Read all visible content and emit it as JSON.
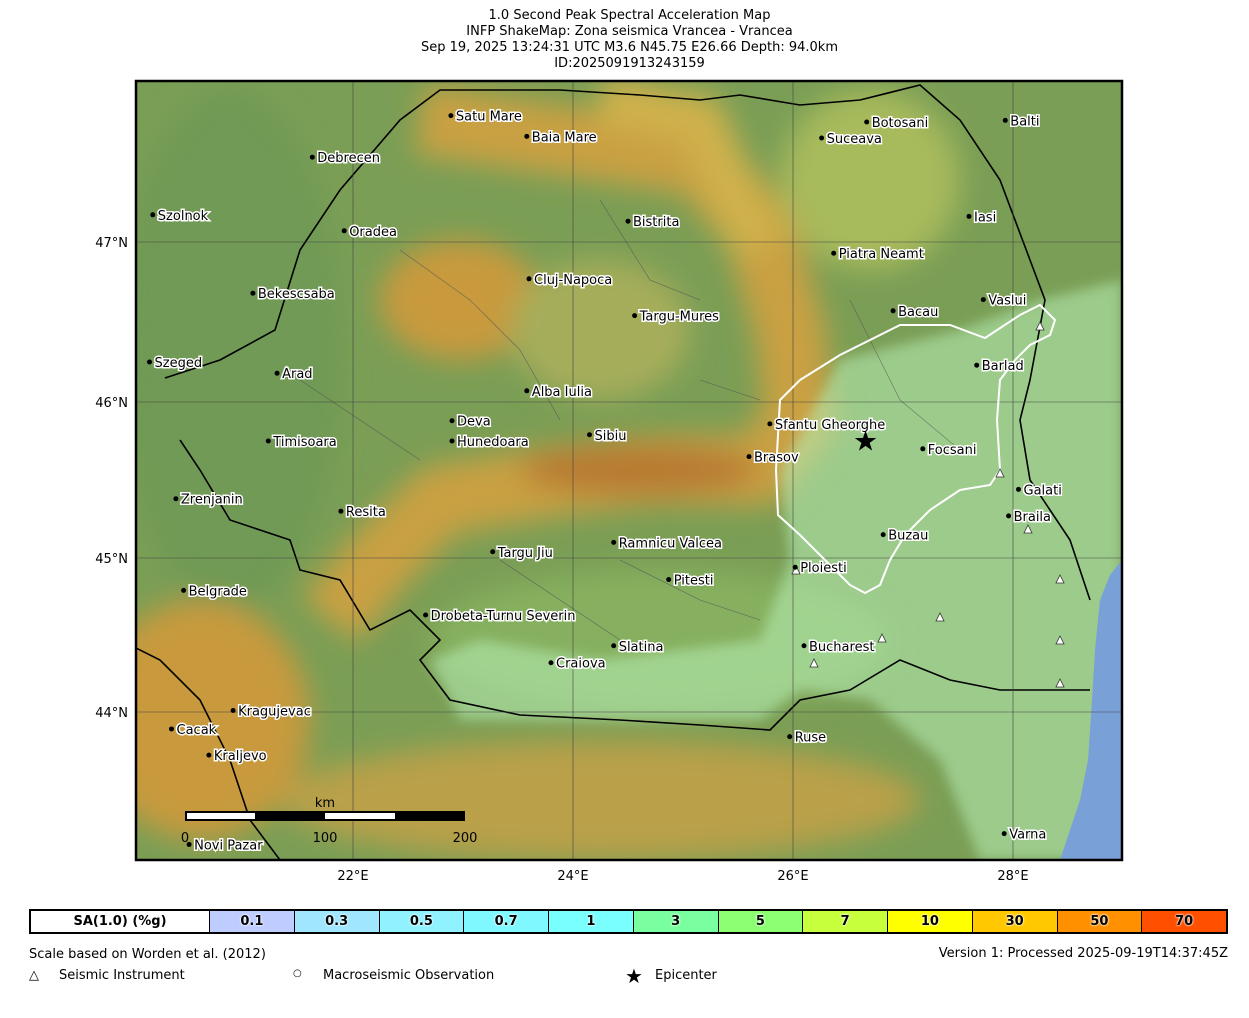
{
  "title": {
    "line1": "1.0 Second Peak Spectral Acceleration Map",
    "line2": "INFP ShakeMap: Zona seismica Vrancea - Vrancea",
    "line3": "Sep 19, 2025 13:24:31 UTC M3.6 N45.75 E26.66 Depth: 94.0km",
    "line4": "ID:2025091913243159"
  },
  "axes": {
    "lat_ticks": [
      "47°N",
      "46°N",
      "45°N",
      "44°N"
    ],
    "lon_ticks": [
      "22°E",
      "24°E",
      "26°E",
      "28°E"
    ]
  },
  "epicenter": {
    "lon": 26.66,
    "lat": 45.75
  },
  "cities": [
    {
      "name": "Satu Mare",
      "lon": 22.89,
      "lat": 47.79
    },
    {
      "name": "Baia Mare",
      "lon": 23.58,
      "lat": 47.66
    },
    {
      "name": "Debrecen",
      "lon": 21.63,
      "lat": 47.53
    },
    {
      "name": "Botosani",
      "lon": 26.67,
      "lat": 47.75
    },
    {
      "name": "Suceava",
      "lon": 26.26,
      "lat": 47.65
    },
    {
      "name": "Balti",
      "lon": 27.93,
      "lat": 47.76
    },
    {
      "name": "Szolnok",
      "lon": 20.18,
      "lat": 47.17
    },
    {
      "name": "Bistrita",
      "lon": 24.5,
      "lat": 47.13
    },
    {
      "name": "Iasi",
      "lon": 27.6,
      "lat": 47.16
    },
    {
      "name": "Oradea",
      "lon": 21.92,
      "lat": 47.07
    },
    {
      "name": "Piatra Neamt",
      "lon": 26.37,
      "lat": 46.93
    },
    {
      "name": "Cluj-Napoca",
      "lon": 23.6,
      "lat": 46.77
    },
    {
      "name": "Bekescsaba",
      "lon": 21.09,
      "lat": 46.68
    },
    {
      "name": "Targu-Mures",
      "lon": 24.56,
      "lat": 46.54
    },
    {
      "name": "Bacau",
      "lon": 26.91,
      "lat": 46.57
    },
    {
      "name": "Vaslui",
      "lon": 27.73,
      "lat": 46.64
    },
    {
      "name": "Szeged",
      "lon": 20.15,
      "lat": 46.25
    },
    {
      "name": "Arad",
      "lon": 21.31,
      "lat": 46.18
    },
    {
      "name": "Barlad",
      "lon": 27.67,
      "lat": 46.23
    },
    {
      "name": "Alba Iulia",
      "lon": 23.58,
      "lat": 46.07
    },
    {
      "name": "Deva",
      "lon": 22.9,
      "lat": 45.88
    },
    {
      "name": "Sfantu Gheorghe",
      "lon": 25.79,
      "lat": 45.86
    },
    {
      "name": "Hunedoara",
      "lon": 22.9,
      "lat": 45.75
    },
    {
      "name": "Sibiu",
      "lon": 24.15,
      "lat": 45.79
    },
    {
      "name": "Timisoara",
      "lon": 21.23,
      "lat": 45.75
    },
    {
      "name": "Focsani",
      "lon": 27.18,
      "lat": 45.7
    },
    {
      "name": "Brasov",
      "lon": 25.6,
      "lat": 45.65
    },
    {
      "name": "Galati",
      "lon": 28.05,
      "lat": 45.44
    },
    {
      "name": "Zrenjanin",
      "lon": 20.39,
      "lat": 45.38
    },
    {
      "name": "Resita",
      "lon": 21.89,
      "lat": 45.3
    },
    {
      "name": "Braila",
      "lon": 27.96,
      "lat": 45.27
    },
    {
      "name": "Buzau",
      "lon": 26.82,
      "lat": 45.15
    },
    {
      "name": "Ramnicu Valcea",
      "lon": 24.37,
      "lat": 45.1
    },
    {
      "name": "Targu Jiu",
      "lon": 23.27,
      "lat": 45.04
    },
    {
      "name": "Ploiesti",
      "lon": 26.02,
      "lat": 44.94
    },
    {
      "name": "Pitesti",
      "lon": 24.87,
      "lat": 44.86
    },
    {
      "name": "Belgrade",
      "lon": 20.46,
      "lat": 44.79
    },
    {
      "name": "Drobeta-Turnu Severin",
      "lon": 22.66,
      "lat": 44.63
    },
    {
      "name": "Slatina",
      "lon": 24.37,
      "lat": 44.43
    },
    {
      "name": "Bucharest",
      "lon": 26.1,
      "lat": 44.43
    },
    {
      "name": "Craiova",
      "lon": 23.8,
      "lat": 44.32
    },
    {
      "name": "Kragujevac",
      "lon": 20.91,
      "lat": 44.01
    },
    {
      "name": "Cacak",
      "lon": 20.35,
      "lat": 43.89
    },
    {
      "name": "Ruse",
      "lon": 25.97,
      "lat": 43.84
    },
    {
      "name": "Kraljevo",
      "lon": 20.69,
      "lat": 43.72
    },
    {
      "name": "Novi Pazar",
      "lon": 20.51,
      "lat": 43.14
    },
    {
      "name": "Varna",
      "lon": 27.92,
      "lat": 43.21
    }
  ],
  "scalebar": {
    "unit": "km",
    "labels": [
      "0",
      "100",
      "200"
    ]
  },
  "colorbar": {
    "label": "SA(1.0) (%g)",
    "bins": [
      {
        "value": "0.1",
        "color": "#bfccff"
      },
      {
        "value": "0.3",
        "color": "#a0e6ff"
      },
      {
        "value": "0.5",
        "color": "#90f2ff"
      },
      {
        "value": "0.7",
        "color": "#80f8ff"
      },
      {
        "value": "1",
        "color": "#7affff"
      },
      {
        "value": "3",
        "color": "#7affa0"
      },
      {
        "value": "5",
        "color": "#8cff73"
      },
      {
        "value": "7",
        "color": "#c8ff3c"
      },
      {
        "value": "10",
        "color": "#ffff00"
      },
      {
        "value": "30",
        "color": "#ffc800"
      },
      {
        "value": "50",
        "color": "#ff9100"
      },
      {
        "value": "70",
        "color": "#ff5000"
      }
    ]
  },
  "footer": {
    "scale_note": "Scale based on Worden et al. (2012)",
    "version": "Version 1: Processed 2025-09-19T14:37:45Z",
    "legend": [
      {
        "icon": "triangle-icon",
        "glyph": "△",
        "label": "Seismic Instrument"
      },
      {
        "icon": "circle-icon",
        "glyph": "○",
        "label": "Macroseismic Observation"
      },
      {
        "icon": "star-icon",
        "glyph": "★",
        "label": "Epicenter"
      }
    ]
  }
}
